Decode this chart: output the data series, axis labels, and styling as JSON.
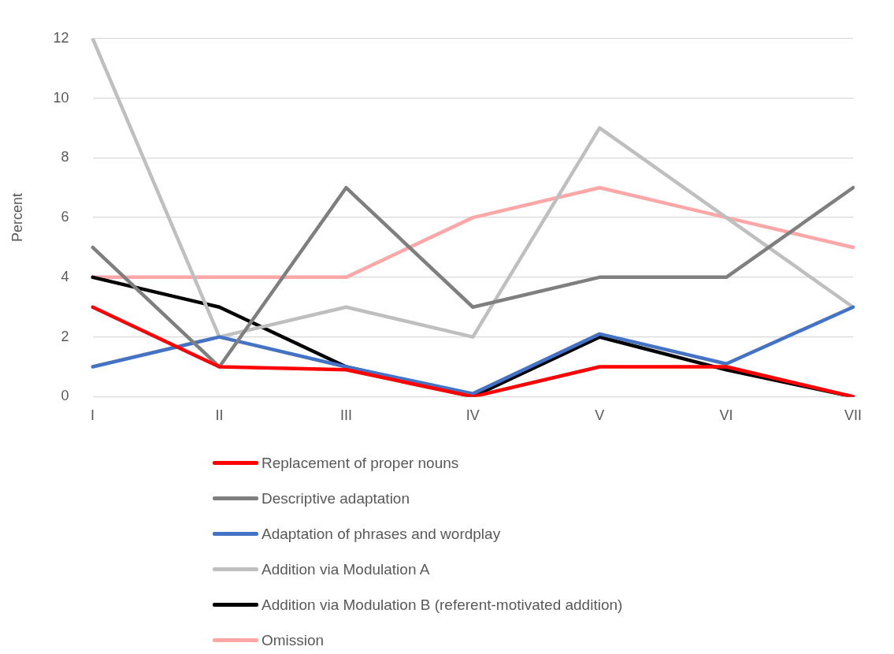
{
  "chart_data": {
    "type": "line",
    "ylabel": "Percent",
    "categories": [
      "I",
      "II",
      "III",
      "IV",
      "V",
      "VI",
      "VII"
    ],
    "series": [
      {
        "name": "Replacement of proper nouns",
        "color": "#ff0000",
        "values": [
          3,
          1,
          0.9,
          0,
          1,
          1,
          0
        ]
      },
      {
        "name": "Descriptive adaptation",
        "color": "#7f7f7f",
        "values": [
          5,
          1,
          7,
          3,
          4,
          4,
          7
        ]
      },
      {
        "name": "Adaptation of phrases and wordplay",
        "color": "#4472c4",
        "values": [
          1,
          2,
          1,
          0.1,
          2.1,
          1.1,
          3
        ]
      },
      {
        "name": "Addition via Modulation A",
        "color": "#bfbfbf",
        "values": [
          12,
          2,
          3,
          2,
          9,
          6,
          3
        ]
      },
      {
        "name": "Addition via Modulation B (referent-motivated addition)",
        "color": "#000000",
        "values": [
          4,
          3,
          1,
          0,
          2,
          0.9,
          0
        ]
      },
      {
        "name": "Omission",
        "color": "#ffa7a7",
        "values": [
          4,
          4,
          4,
          6,
          7,
          6,
          5
        ]
      }
    ],
    "ylim": [
      0,
      12
    ],
    "yticks": [
      0,
      2,
      4,
      6,
      8,
      10,
      12
    ],
    "grid": "y",
    "legend": "bottom",
    "marker": "none",
    "line_style": "solid"
  }
}
